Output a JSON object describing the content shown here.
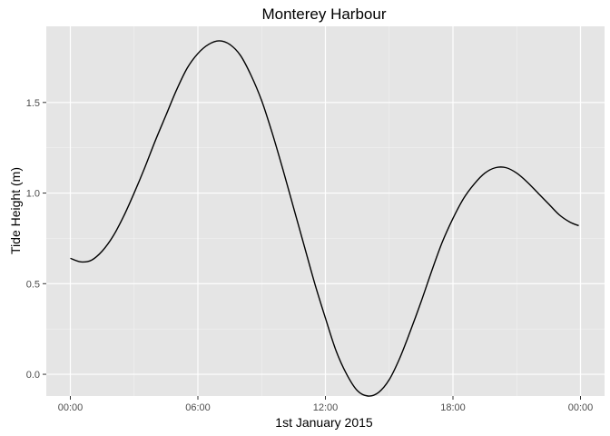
{
  "chart_data": {
    "type": "line",
    "title": "Monterey Harbour",
    "xlabel": "1st January 2015",
    "ylabel": "Tide Height (m)",
    "grid": true,
    "x_unit": "time of day",
    "xlim": [
      "00:00",
      "24:00"
    ],
    "ylim": [
      -0.12,
      1.92
    ],
    "x_ticks": [
      {
        "label": "00:00",
        "hour": 0
      },
      {
        "label": "06:00",
        "hour": 6
      },
      {
        "label": "12:00",
        "hour": 12
      },
      {
        "label": "18:00",
        "hour": 18
      },
      {
        "label": "00:00",
        "hour": 24
      }
    ],
    "y_ticks": [
      {
        "label": "0.0",
        "value": 0.0
      },
      {
        "label": "0.5",
        "value": 0.5
      },
      {
        "label": "1.0",
        "value": 1.0
      },
      {
        "label": "1.5",
        "value": 1.5
      }
    ],
    "series": [
      {
        "color": "#000000",
        "x": [
          "00:00",
          "00:30",
          "01:00",
          "01:30",
          "02:00",
          "02:30",
          "03:00",
          "03:30",
          "04:00",
          "04:30",
          "05:00",
          "05:30",
          "06:00",
          "06:30",
          "07:00",
          "07:30",
          "08:00",
          "08:30",
          "09:00",
          "09:30",
          "10:00",
          "10:30",
          "11:00",
          "11:30",
          "12:00",
          "12:30",
          "13:00",
          "13:30",
          "14:00",
          "14:30",
          "15:00",
          "15:30",
          "16:00",
          "16:30",
          "17:00",
          "17:30",
          "18:00",
          "18:30",
          "19:00",
          "19:30",
          "20:00",
          "20:30",
          "21:00",
          "21:30",
          "22:00",
          "22:30",
          "23:00",
          "23:30",
          "23:55"
        ],
        "y": [
          0.64,
          0.62,
          0.63,
          0.68,
          0.76,
          0.87,
          1.0,
          1.14,
          1.29,
          1.43,
          1.57,
          1.69,
          1.77,
          1.82,
          1.84,
          1.82,
          1.76,
          1.65,
          1.51,
          1.33,
          1.13,
          0.92,
          0.71,
          0.5,
          0.31,
          0.13,
          0.0,
          -0.09,
          -0.12,
          -0.1,
          -0.03,
          0.09,
          0.24,
          0.4,
          0.57,
          0.73,
          0.86,
          0.97,
          1.05,
          1.11,
          1.14,
          1.14,
          1.11,
          1.06,
          1.0,
          0.94,
          0.88,
          0.84,
          0.82
        ]
      }
    ]
  }
}
